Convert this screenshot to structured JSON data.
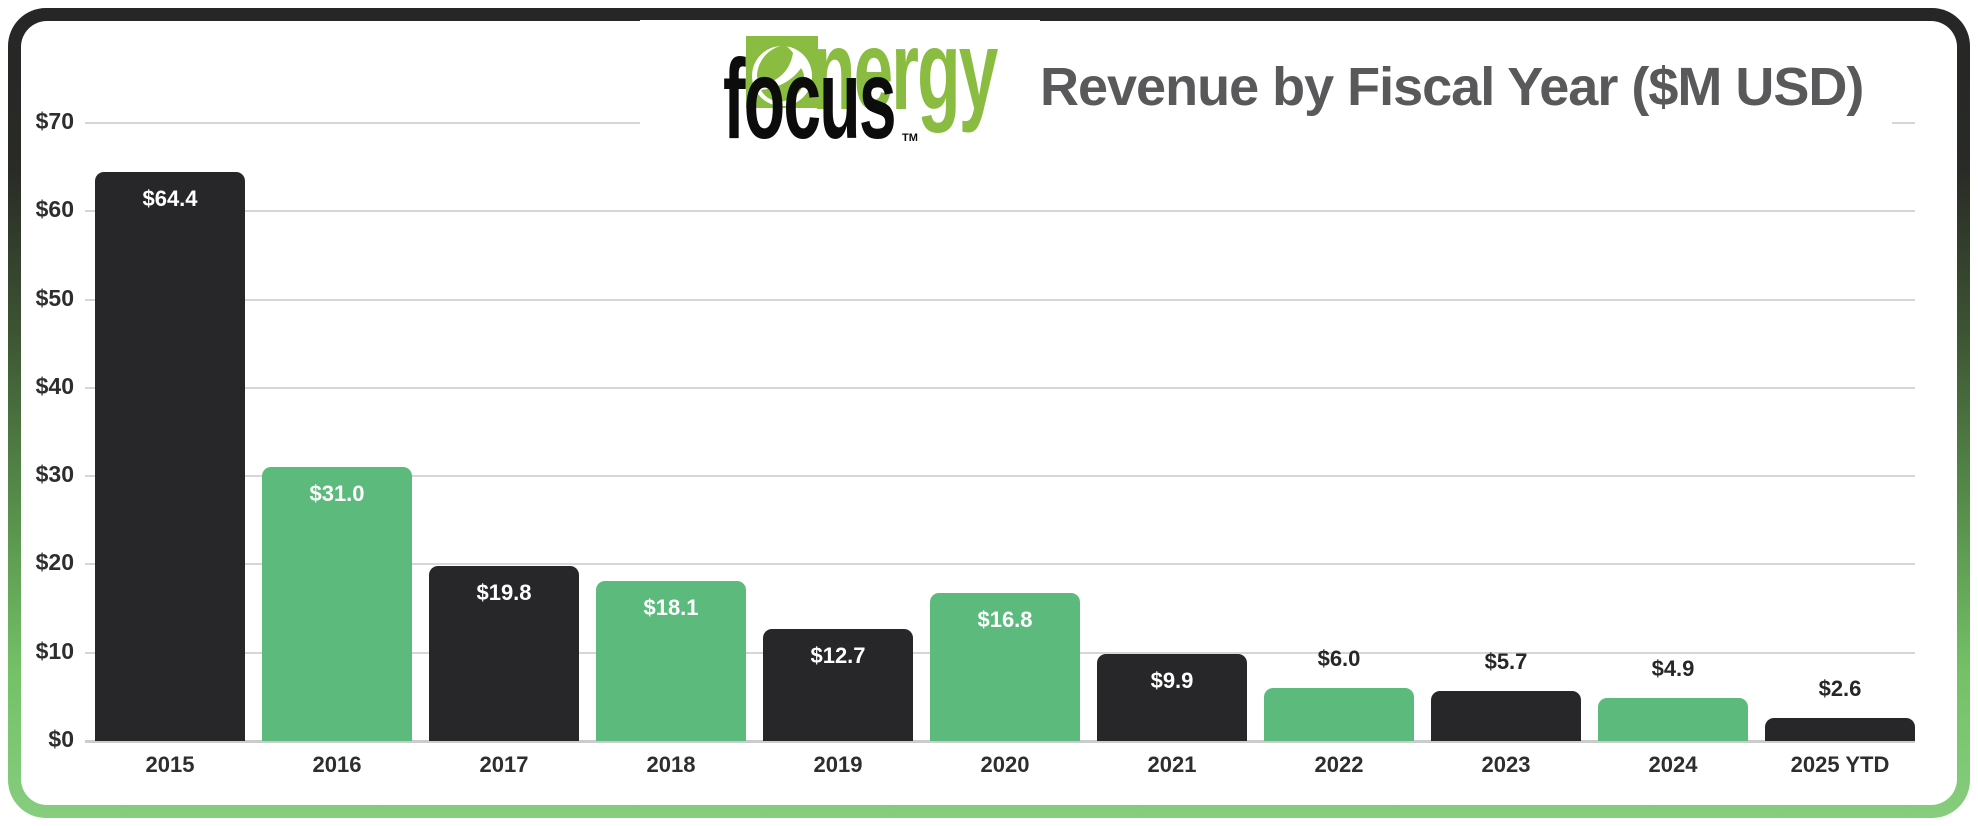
{
  "header": {
    "title": "Revenue by Fiscal Year ($M USD)"
  },
  "logo": {
    "nergy_text": "nergy",
    "focus_text": "focus",
    "tm": "TM",
    "icon": "leaf-e-icon"
  },
  "chart_data": {
    "type": "bar",
    "title": "Revenue by Fiscal Year ($M USD)",
    "categories": [
      "2015",
      "2016",
      "2017",
      "2018",
      "2019",
      "2020",
      "2021",
      "2022",
      "2023",
      "2024",
      "2025 YTD"
    ],
    "values": [
      64.4,
      31.0,
      19.8,
      18.1,
      12.7,
      16.8,
      9.9,
      6.0,
      5.7,
      4.9,
      2.6
    ],
    "bar_labels": [
      "$64.4",
      "$31.0",
      "$19.8",
      "$18.1",
      "$12.7",
      "$16.8",
      "$9.9",
      "$6.0",
      "$5.7",
      "$4.9",
      "$2.6"
    ],
    "xlabel": "",
    "ylabel": "",
    "ylim": [
      0,
      70
    ],
    "ytick_interval": 10,
    "ytick_labels": [
      "$0",
      "$10",
      "$20",
      "$30",
      "$40",
      "$50",
      "$60",
      "$70"
    ],
    "grid": true,
    "legend_position": "none",
    "bar_color_pattern": [
      "#272629",
      "#5cba7c"
    ],
    "value_label_inside_color": "#ffffff",
    "value_label_outside_color": "#272629",
    "inside_label_min_value": 9
  },
  "colors": {
    "background": "#ffffff",
    "frame_top": "#262626",
    "frame_bottom": "#86cd7e",
    "logo_green": "#8abc41",
    "logo_black": "#0c0c0c",
    "title_text": "#59595b",
    "axis_text": "#2e2e2e",
    "gridline": "#d6d6d6",
    "baseline": "#cccccc"
  }
}
